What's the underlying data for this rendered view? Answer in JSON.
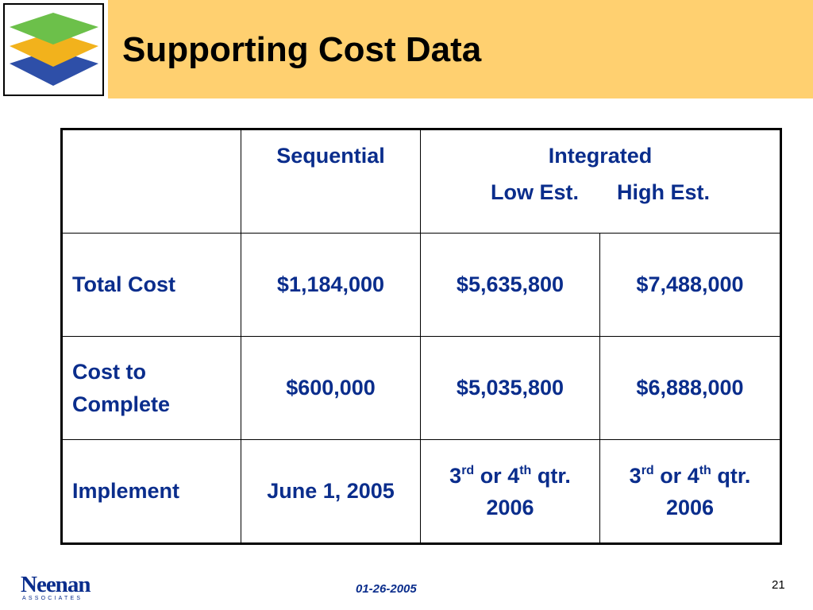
{
  "header": {
    "title": "Supporting Cost Data"
  },
  "table": {
    "header": {
      "corner": "",
      "sequential": "Sequential",
      "integrated": "Integrated",
      "low_est": "Low Est.",
      "high_est": "High Est."
    },
    "rows": [
      {
        "label": "Total Cost",
        "sequential": "$1,184,000",
        "low": "$5,635,800",
        "high": "$7,488,000"
      },
      {
        "label_line1": "Cost to",
        "label_line2": "Complete",
        "sequential": "$600,000",
        "low": "$5,035,800",
        "high": "$6,888,000"
      },
      {
        "label": "Implement",
        "sequential": "June 1, 2005",
        "low": {
          "num1": "3",
          "sup1": "rd",
          "mid": " or 4",
          "sup2": "th",
          "tail": " qtr.",
          "year": "2006"
        },
        "high": {
          "num1": "3",
          "sup1": "rd",
          "mid": " or 4",
          "sup2": "th",
          "tail": " qtr.",
          "year": "2006"
        }
      }
    ]
  },
  "footer": {
    "logo_word": "Neenan",
    "logo_sub": "ASSOCIATES",
    "date": "01-26-2005",
    "page_number": "21"
  },
  "colors": {
    "header_band": "#ffd070",
    "text_blue": "#0a2d8c",
    "logo_green": "#6cc04a",
    "logo_gold": "#f2b21c",
    "logo_blue": "#2e4fa8"
  }
}
